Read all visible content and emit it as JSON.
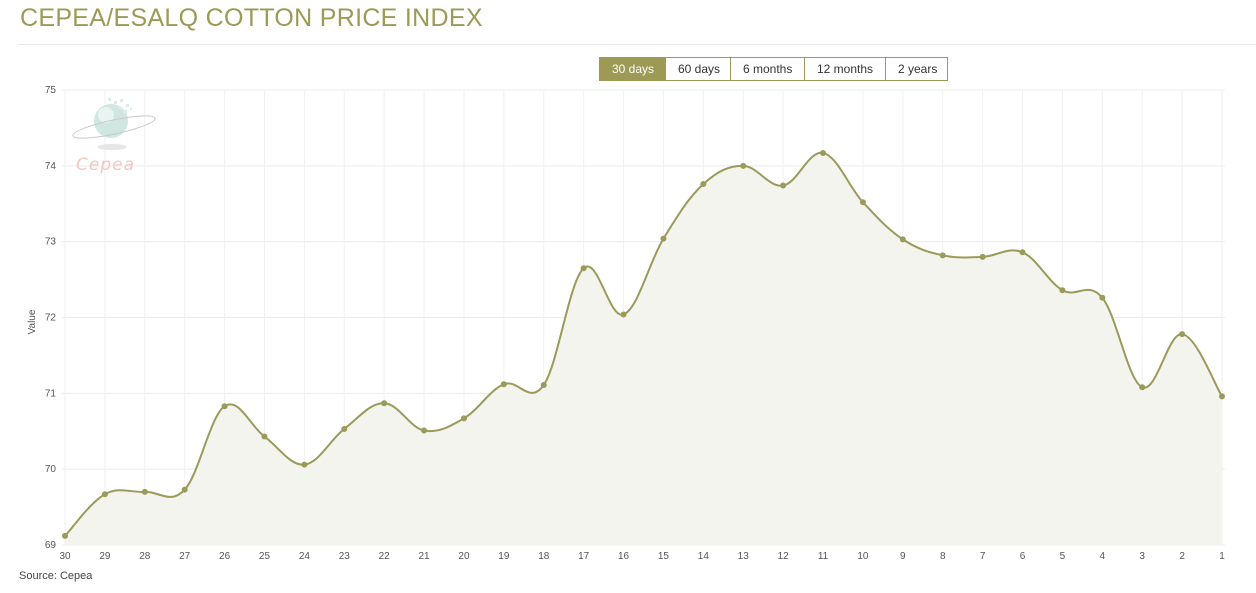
{
  "page": {
    "title": "CEPEA/ESALQ COTTON PRICE INDEX",
    "source": "Source: Cepea"
  },
  "range_tabs": [
    {
      "label": "30 days",
      "active": true
    },
    {
      "label": "60 days",
      "active": false
    },
    {
      "label": "6 months",
      "active": false
    },
    {
      "label": "12 months",
      "active": false
    },
    {
      "label": "2 years",
      "active": false
    }
  ],
  "watermark": {
    "text": "Cepea",
    "icon": "globe-icon"
  },
  "colors": {
    "accent": "#9c9a55",
    "line": "#9a9a5a",
    "area_fill": "#f4f4ee",
    "grid": "#ececec"
  },
  "chart_data": {
    "type": "area",
    "categories": [
      "30",
      "29",
      "28",
      "27",
      "26",
      "25",
      "24",
      "23",
      "22",
      "21",
      "20",
      "19",
      "18",
      "17",
      "16",
      "15",
      "14",
      "13",
      "12",
      "11",
      "10",
      "9",
      "8",
      "7",
      "6",
      "5",
      "4",
      "3",
      "2",
      "1"
    ],
    "series": [
      {
        "values": [
          69.12,
          69.67,
          69.7,
          69.73,
          70.83,
          70.43,
          70.06,
          70.53,
          70.87,
          70.51,
          70.67,
          71.12,
          71.11,
          72.65,
          72.04,
          73.04,
          73.76,
          74.0,
          73.74,
          74.17,
          73.52,
          73.03,
          72.82,
          72.8,
          72.86,
          72.36,
          72.26,
          71.08,
          71.78,
          70.96
        ]
      }
    ],
    "xlabel": "",
    "ylabel": "Value",
    "ylim": [
      69,
      75
    ],
    "yticks": [
      "69",
      "70",
      "71",
      "72",
      "73",
      "74",
      "75"
    ],
    "grid": true,
    "smooth": true,
    "markers": true,
    "legend": "none"
  }
}
